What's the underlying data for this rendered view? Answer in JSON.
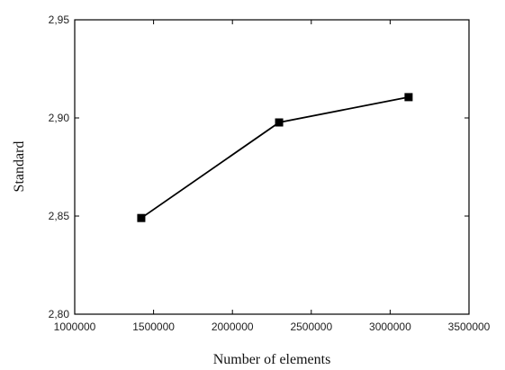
{
  "chart_data": {
    "type": "line",
    "x_label": "Number of elements",
    "y_label": "Standard",
    "x": [
      1422000,
      2296000,
      3117000
    ],
    "series": [
      {
        "values": [
          2.849,
          2.8977,
          2.9106
        ],
        "color": "#000000",
        "marker": "square"
      }
    ],
    "xlim": [
      1000000,
      3500000
    ],
    "xticks": [
      1000000,
      1500000,
      2000000,
      2500000,
      3000000,
      3500000
    ],
    "ylim": [
      2.8,
      2.95
    ],
    "yticks": [
      {
        "value": 2.8,
        "label": "2,80"
      },
      {
        "value": 2.85,
        "label": "2,85"
      },
      {
        "value": 2.9,
        "label": "2,90"
      },
      {
        "value": 2.95,
        "label": "2,95"
      }
    ],
    "grid": false
  }
}
